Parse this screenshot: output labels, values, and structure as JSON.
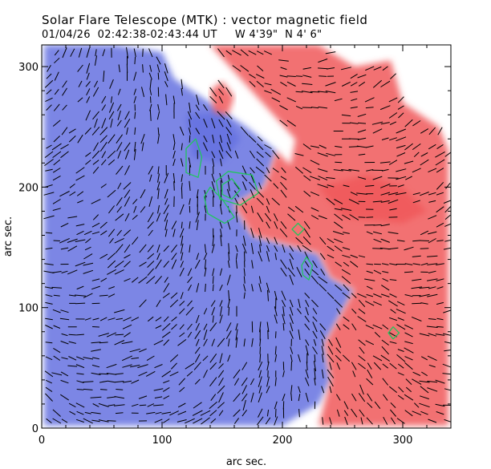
{
  "header": {
    "title": "Solar Flare Telescope (MTK) : vector magnetic field",
    "subtitle": "01/04/26  02:42:38-02:43:44 UT     W 4'39\"  N 4' 6\""
  },
  "colors": {
    "positive_field": "#f0585a",
    "negative_field": "#6472e0",
    "contour": "#22c55e",
    "vectors": "#000000"
  },
  "chart_data": {
    "type": "heatmap",
    "title": "Solar Flare Telescope (MTK) : vector magnetic field",
    "xlabel": "arc sec.",
    "ylabel": "arc sec.",
    "xlim": [
      0,
      340
    ],
    "ylim": [
      0,
      318
    ],
    "xticks": [
      0,
      100,
      200,
      300
    ],
    "yticks": [
      0,
      100,
      200,
      300
    ],
    "legend": "none",
    "grid": false,
    "polarity_regions": [
      {
        "polarity": "negative",
        "points": [
          [
            2,
            318
          ],
          [
            60,
            318
          ],
          [
            100,
            312
          ],
          [
            110,
            290
          ],
          [
            140,
            270
          ],
          [
            170,
            250
          ],
          [
            195,
            230
          ],
          [
            185,
            200
          ],
          [
            160,
            185
          ],
          [
            175,
            160
          ],
          [
            230,
            145
          ],
          [
            240,
            125
          ],
          [
            260,
            115
          ],
          [
            235,
            70
          ],
          [
            240,
            40
          ],
          [
            230,
            20
          ],
          [
            200,
            2
          ],
          [
            2,
            2
          ]
        ]
      },
      {
        "polarity": "negative",
        "points": [
          [
            120,
            260
          ],
          [
            150,
            262
          ],
          [
            165,
            240
          ],
          [
            150,
            220
          ],
          [
            125,
            225
          ]
        ]
      },
      {
        "polarity": "positive",
        "points": [
          [
            140,
            318
          ],
          [
            230,
            318
          ],
          [
            260,
            300
          ],
          [
            290,
            305
          ],
          [
            300,
            270
          ],
          [
            330,
            250
          ],
          [
            338,
            230
          ],
          [
            338,
            2
          ],
          [
            230,
            2
          ],
          [
            240,
            40
          ],
          [
            235,
            70
          ],
          [
            260,
            115
          ],
          [
            240,
            125
          ],
          [
            230,
            145
          ],
          [
            175,
            160
          ],
          [
            160,
            185
          ],
          [
            185,
            200
          ],
          [
            195,
            230
          ],
          [
            210,
            215
          ],
          [
            230,
            200
          ],
          [
            200,
            185
          ],
          [
            215,
            260
          ],
          [
            250,
            270
          ],
          [
            245,
            240
          ],
          [
            215,
            235
          ]
        ]
      },
      {
        "polarity": "positive",
        "points": [
          [
            140,
            280
          ],
          [
            150,
            288
          ],
          [
            160,
            275
          ],
          [
            155,
            260
          ],
          [
            143,
            262
          ]
        ]
      },
      {
        "polarity": "positive",
        "points": [
          [
            230,
            200
          ],
          [
            270,
            210
          ],
          [
            300,
            200
          ],
          [
            320,
            180
          ],
          [
            300,
            170
          ],
          [
            250,
            175
          ]
        ]
      }
    ],
    "contours": [
      {
        "points": [
          [
            120,
            232
          ],
          [
            128,
            240
          ],
          [
            133,
            225
          ],
          [
            130,
            208
          ],
          [
            120,
            212
          ]
        ]
      },
      {
        "points": [
          [
            145,
            205
          ],
          [
            155,
            213
          ],
          [
            175,
            210
          ],
          [
            180,
            195
          ],
          [
            165,
            185
          ],
          [
            148,
            190
          ]
        ]
      },
      {
        "points": [
          [
            150,
            202
          ],
          [
            158,
            207
          ],
          [
            165,
            198
          ],
          [
            158,
            190
          ],
          [
            150,
            194
          ]
        ]
      },
      {
        "points": [
          [
            135,
            192
          ],
          [
            140,
            200
          ],
          [
            150,
            190
          ],
          [
            160,
            175
          ],
          [
            152,
            170
          ],
          [
            138,
            178
          ]
        ]
      },
      {
        "points": [
          [
            208,
            165
          ],
          [
            213,
            170
          ],
          [
            218,
            165
          ],
          [
            213,
            160
          ]
        ]
      },
      {
        "points": [
          [
            216,
            135
          ],
          [
            220,
            142
          ],
          [
            225,
            135
          ],
          [
            222,
            123
          ],
          [
            217,
            127
          ]
        ]
      },
      {
        "points": [
          [
            288,
            79
          ],
          [
            292,
            84
          ],
          [
            297,
            79
          ],
          [
            292,
            74
          ]
        ]
      }
    ]
  }
}
